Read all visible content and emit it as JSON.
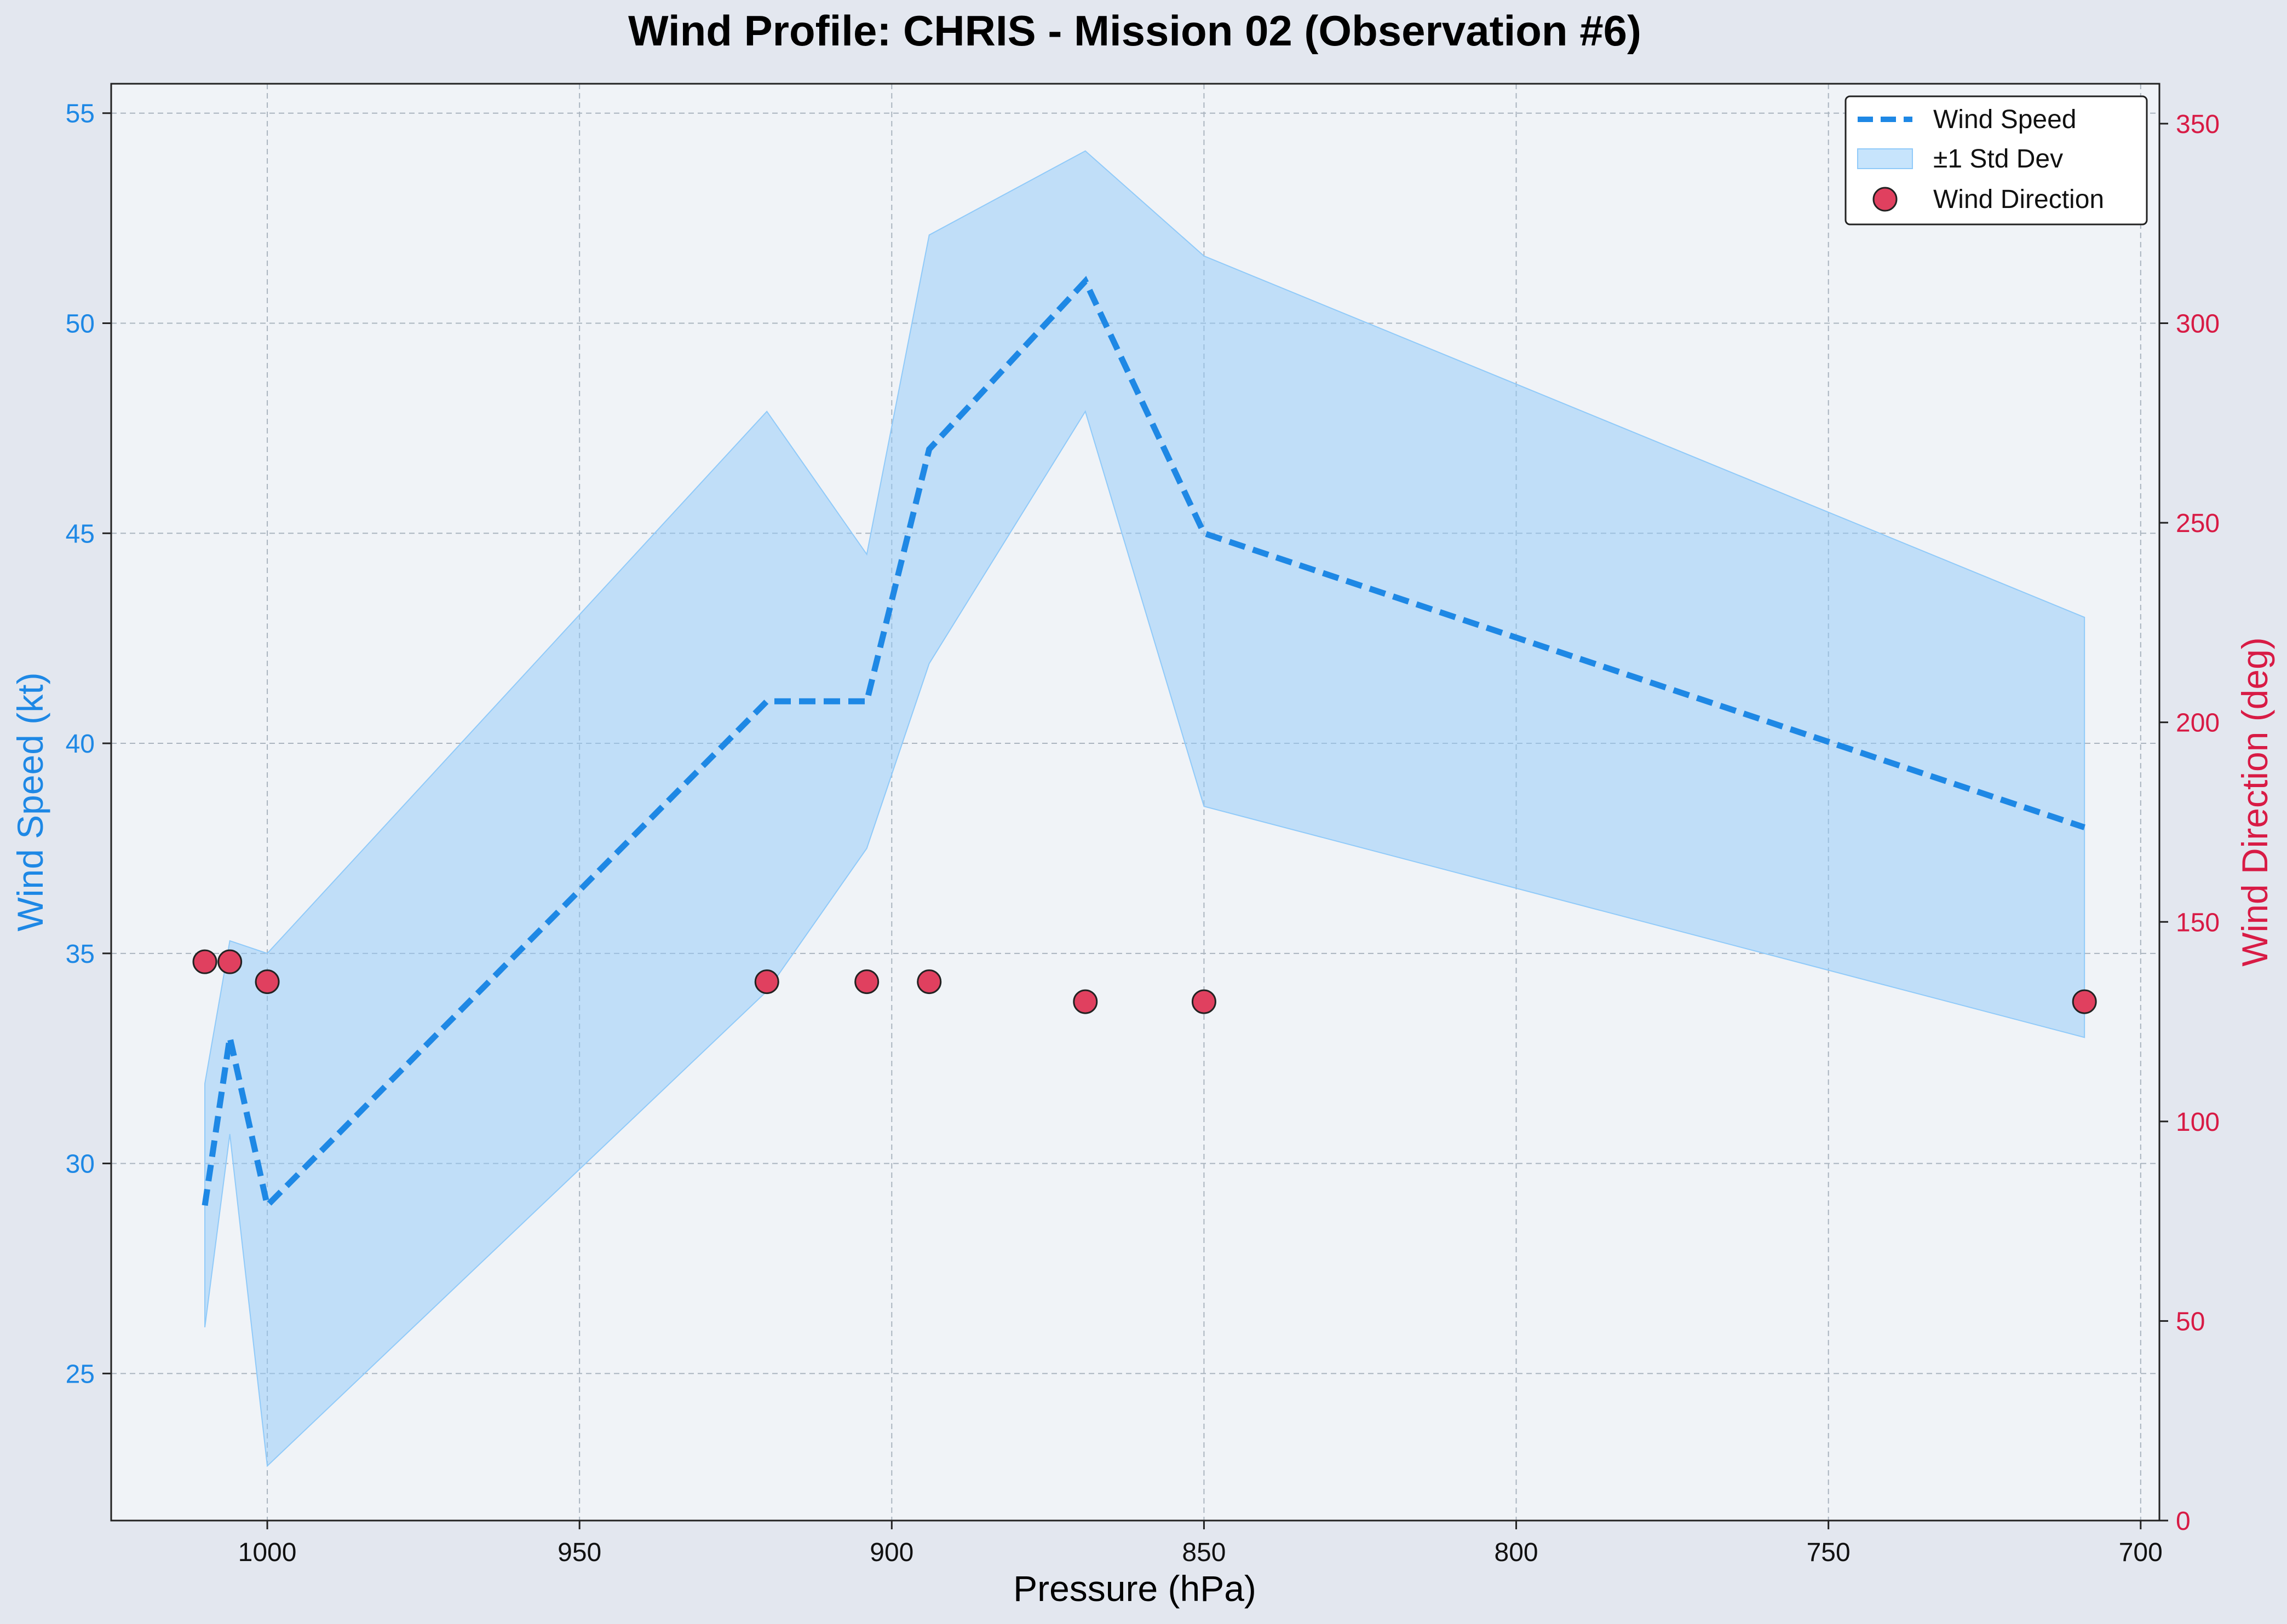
{
  "chart_data": {
    "type": "line",
    "title": "Wind Profile: CHRIS - Mission 02 (Observation #6)",
    "xlabel": "Pressure (hPa)",
    "ylabel": "Wind Speed (kt)",
    "ylabel2": "Wind Direction (deg)",
    "x_inverted": true,
    "xlim": [
      1025,
      697
    ],
    "ylim": [
      21.5,
      55.7
    ],
    "ylim2": [
      0,
      350
    ],
    "xticks": [
      1000,
      950,
      900,
      850,
      800,
      750,
      700
    ],
    "yticks": [
      25,
      30,
      35,
      40,
      45,
      50,
      55
    ],
    "yticks2": [
      0,
      50,
      100,
      150,
      200,
      250,
      300,
      350
    ],
    "grid": true,
    "legend_position": "top-right",
    "legend": [
      "Wind Speed",
      "±1 Std Dev",
      "Wind Direction"
    ],
    "x": [
      1010,
      1006,
      1000,
      920,
      904,
      894,
      869,
      850,
      709
    ],
    "series": [
      {
        "name": "Wind Speed",
        "axis": "left",
        "style": "dashed-line",
        "color": "#1e88e5",
        "values": [
          29,
          33,
          29,
          41,
          41,
          47,
          51,
          45,
          38
        ]
      },
      {
        "name": "±1 Std Dev",
        "axis": "left",
        "style": "band",
        "color": "#90caf9",
        "upper": [
          31.9,
          35.3,
          35.0,
          47.9,
          44.5,
          52.1,
          54.1,
          51.6,
          43.0
        ],
        "lower": [
          26.1,
          30.7,
          22.8,
          34.1,
          37.5,
          41.9,
          47.9,
          38.5,
          33.0
        ]
      },
      {
        "name": "Wind Direction",
        "axis": "right",
        "style": "scatter",
        "color": "#e0405f",
        "values": [
          140,
          140,
          135,
          135,
          135,
          135,
          130,
          130,
          130
        ]
      }
    ],
    "colors": {
      "speed": "#1e88e5",
      "band": "#90caf9",
      "direction": "#e0405f",
      "left_axis": "#1e88e5",
      "right_axis": "#d81b45",
      "plot_bg": "#f0f3f7",
      "figure_bg": "#e3e7ef",
      "grid": "#aab4bf"
    }
  }
}
